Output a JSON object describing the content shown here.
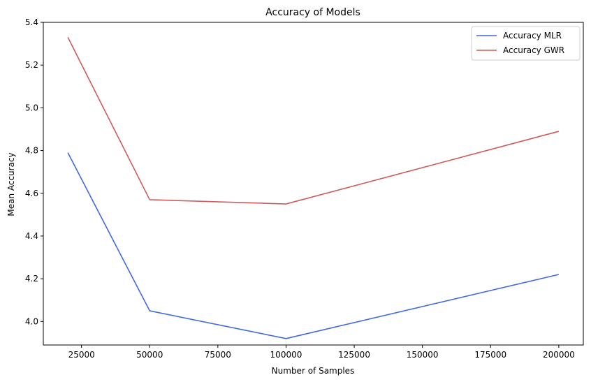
{
  "chart_data": {
    "type": "line",
    "title": "Accuracy of Models",
    "xlabel": "Number of Samples",
    "ylabel": "Mean Accuracy",
    "xlim": [
      11000,
      209000
    ],
    "ylim": [
      3.89,
      5.4
    ],
    "xticks": [
      25000,
      50000,
      75000,
      100000,
      125000,
      150000,
      175000,
      200000
    ],
    "xtick_labels": [
      "25000",
      "50000",
      "75000",
      "100000",
      "125000",
      "150000",
      "175000",
      "200000"
    ],
    "yticks": [
      4.0,
      4.2,
      4.4,
      4.6,
      4.8,
      5.0,
      5.2,
      5.4
    ],
    "ytick_labels": [
      "4.0",
      "4.2",
      "4.4",
      "4.6",
      "4.8",
      "5.0",
      "5.2",
      "5.4"
    ],
    "x": [
      20000,
      50000,
      100000,
      200000
    ],
    "grid": false,
    "legend_position": "top-right",
    "series": [
      {
        "name": "Accuracy MLR",
        "color": "#4169e1",
        "values": [
          4.79,
          4.05,
          3.92,
          4.22
        ]
      },
      {
        "name": "Accuracy GWR",
        "color": "#cd5c5c",
        "values": [
          5.33,
          4.57,
          4.55,
          4.89
        ]
      }
    ]
  }
}
